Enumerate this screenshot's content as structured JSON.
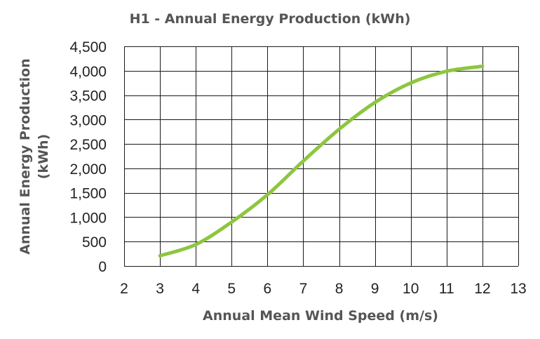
{
  "chart_data": {
    "type": "line",
    "title": "H1 - Annual Energy Production (kWh)",
    "xlabel": "Annual Mean Wind Speed (m/s)",
    "ylabel_lines": [
      "Annual Energy Production",
      "(kWh)"
    ],
    "xlim": [
      2,
      13
    ],
    "ylim": [
      0,
      4500
    ],
    "xticks": [
      2,
      3,
      4,
      5,
      6,
      7,
      8,
      9,
      10,
      11,
      12,
      13
    ],
    "yticks": [
      0,
      500,
      1000,
      1500,
      2000,
      2500,
      3000,
      3500,
      4000,
      4500
    ],
    "ytick_labels": [
      "0",
      "500",
      "1,000",
      "1,500",
      "2,000",
      "2,500",
      "3,000",
      "3,500",
      "4,000",
      "4,500"
    ],
    "grid": true,
    "series": [
      {
        "color": "#8dc63f",
        "x": [
          3,
          4,
          5,
          6,
          7,
          8,
          9,
          10,
          11,
          12
        ],
        "y": [
          210,
          440,
          900,
          1460,
          2150,
          2800,
          3350,
          3750,
          3990,
          4090
        ]
      }
    ]
  }
}
